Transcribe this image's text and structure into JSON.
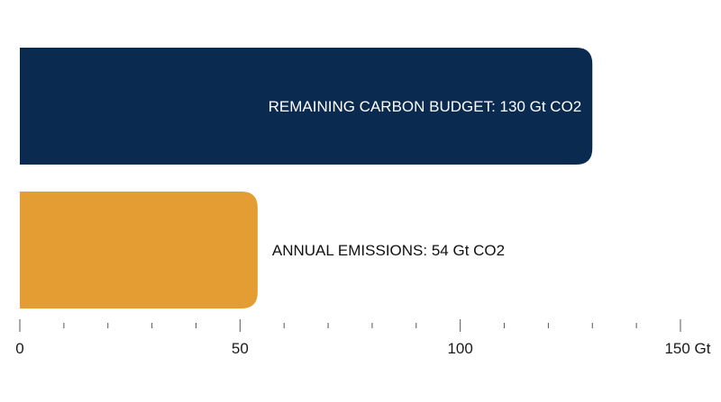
{
  "chart_data": {
    "type": "bar",
    "orientation": "horizontal",
    "categories": [
      "REMAINING CARBON BUDGET",
      "ANNUAL EMISSIONS"
    ],
    "values": [
      130,
      54
    ],
    "data_labels": [
      "REMAINING CARBON BUDGET: 130 Gt CO2",
      "ANNUAL EMISSIONS: 54 Gt CO2"
    ],
    "colors": [
      "#0b2a4f",
      "#e39d33"
    ],
    "label_colors": [
      "#ffffff",
      "#111111"
    ],
    "label_positions": [
      "inside-end",
      "outside-end"
    ],
    "xlim": [
      0,
      150
    ],
    "major_ticks": [
      0,
      50,
      100,
      150
    ],
    "minor_tick_step": 10,
    "tick_labels": [
      "0",
      "50",
      "100",
      "150 Gt"
    ],
    "grid": false,
    "legend": "none"
  }
}
